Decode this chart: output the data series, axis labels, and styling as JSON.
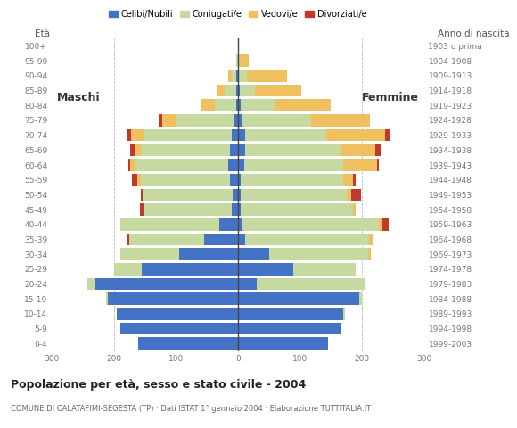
{
  "age_groups": [
    "0-4",
    "5-9",
    "10-14",
    "15-19",
    "20-24",
    "25-29",
    "30-34",
    "35-39",
    "40-44",
    "45-49",
    "50-54",
    "55-59",
    "60-64",
    "65-69",
    "70-74",
    "75-79",
    "80-84",
    "85-89",
    "90-94",
    "95-99",
    "100+"
  ],
  "birth_years": [
    "1999-2003",
    "1994-1998",
    "1989-1993",
    "1984-1988",
    "1979-1983",
    "1974-1978",
    "1969-1973",
    "1964-1968",
    "1959-1963",
    "1954-1958",
    "1949-1953",
    "1944-1948",
    "1939-1943",
    "1934-1938",
    "1929-1933",
    "1924-1928",
    "1919-1923",
    "1914-1918",
    "1909-1913",
    "1904-1908",
    "1903 o prima"
  ],
  "male_celibe": [
    160,
    190,
    195,
    210,
    230,
    155,
    95,
    55,
    30,
    10,
    8,
    12,
    15,
    12,
    10,
    5,
    2,
    3,
    2,
    0,
    0
  ],
  "male_coniugato": [
    0,
    0,
    0,
    2,
    12,
    45,
    95,
    120,
    160,
    140,
    145,
    145,
    150,
    145,
    140,
    95,
    35,
    18,
    8,
    2,
    0
  ],
  "male_vedovo": [
    0,
    0,
    0,
    0,
    0,
    0,
    0,
    0,
    0,
    0,
    0,
    5,
    8,
    8,
    22,
    22,
    22,
    12,
    5,
    0,
    0
  ],
  "male_divorziato": [
    0,
    0,
    0,
    0,
    0,
    0,
    0,
    5,
    0,
    8,
    3,
    8,
    3,
    8,
    7,
    5,
    0,
    0,
    0,
    0,
    0
  ],
  "female_nubile": [
    145,
    165,
    170,
    195,
    30,
    90,
    50,
    12,
    8,
    5,
    5,
    5,
    10,
    12,
    12,
    8,
    5,
    3,
    2,
    0,
    0
  ],
  "female_coniugata": [
    0,
    0,
    2,
    5,
    175,
    100,
    160,
    200,
    220,
    180,
    170,
    165,
    160,
    155,
    130,
    110,
    55,
    25,
    12,
    3,
    0
  ],
  "female_vedova": [
    0,
    0,
    0,
    0,
    0,
    0,
    5,
    5,
    5,
    5,
    8,
    15,
    55,
    55,
    95,
    95,
    90,
    75,
    65,
    15,
    0
  ],
  "female_divorziata": [
    0,
    0,
    0,
    0,
    0,
    0,
    0,
    0,
    10,
    0,
    15,
    5,
    3,
    8,
    8,
    0,
    0,
    0,
    0,
    0,
    0
  ],
  "colors": {
    "celibe": "#4472c4",
    "coniugato": "#c5d9a0",
    "vedovo": "#f0c060",
    "divorziato": "#c0392b"
  },
  "xlim": 300,
  "title": "Popolazione per età, sesso e stato civile - 2004",
  "subtitle": "COMUNE DI CALATAFIMI-SEGESTA (TP) · Dati ISTAT 1° gennaio 2004 · Elaborazione TUTTITALIA.IT",
  "ylabel_left": "Età",
  "ylabel_right": "Anno di nascita",
  "label_maschi": "Maschi",
  "label_femmine": "Femmine",
  "legend": [
    "Celibi/Nubili",
    "Coniugati/e",
    "Vedovi/e",
    "Divorziati/e"
  ],
  "background": "#ffffff"
}
